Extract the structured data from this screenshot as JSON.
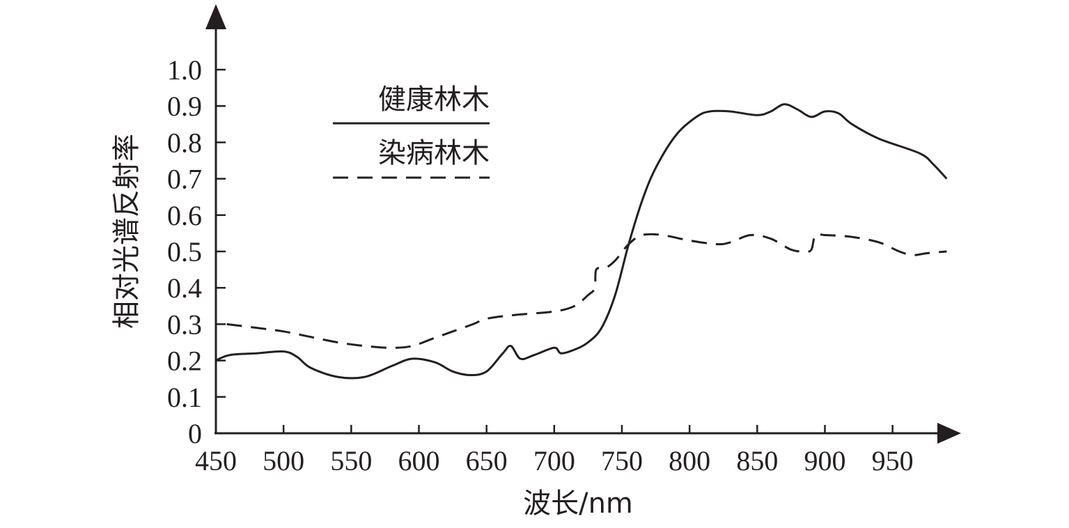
{
  "chart_data": {
    "type": "line",
    "xlabel": "波长/nm",
    "ylabel": "相对光谱反射率",
    "xlim": [
      450,
      990
    ],
    "ylim": [
      0,
      1.0
    ],
    "x_ticks": [
      450,
      500,
      550,
      600,
      650,
      700,
      750,
      800,
      850,
      900,
      950
    ],
    "y_ticks": [
      0,
      0.1,
      0.2,
      0.3,
      0.4,
      0.5,
      0.6,
      0.7,
      0.8,
      0.9,
      1.0
    ],
    "x_tick_labels": [
      "450",
      "500",
      "550",
      "600",
      "650",
      "700",
      "750",
      "800",
      "850",
      "900",
      "950"
    ],
    "y_tick_labels": [
      "0",
      "0.1",
      "0.2",
      "0.3",
      "0.4",
      "0.5",
      "0.6",
      "0.7",
      "0.8",
      "0.9",
      "1.0"
    ],
    "legend_position": "top-left",
    "series": [
      {
        "name": "健康林木",
        "style": "solid",
        "color": "#231f20",
        "x": [
          450,
          460,
          480,
          500,
          510,
          520,
          540,
          560,
          580,
          595,
          612,
          625,
          638,
          650,
          662,
          668,
          675,
          685,
          700,
          705,
          715,
          725,
          735,
          745,
          755,
          765,
          775,
          790,
          805,
          815,
          830,
          850,
          860,
          870,
          880,
          890,
          900,
          910,
          920,
          940,
          970,
          980,
          990
        ],
        "y": [
          0.2,
          0.215,
          0.22,
          0.225,
          0.21,
          0.18,
          0.155,
          0.155,
          0.185,
          0.205,
          0.195,
          0.17,
          0.16,
          0.17,
          0.22,
          0.24,
          0.205,
          0.215,
          0.235,
          0.22,
          0.23,
          0.25,
          0.29,
          0.38,
          0.52,
          0.64,
          0.73,
          0.82,
          0.87,
          0.885,
          0.885,
          0.875,
          0.885,
          0.905,
          0.89,
          0.87,
          0.885,
          0.88,
          0.85,
          0.81,
          0.77,
          0.74,
          0.7
        ]
      },
      {
        "name": "染病林木",
        "style": "dashed",
        "color": "#231f20",
        "x": [
          458,
          480,
          500,
          520,
          540,
          560,
          580,
          595,
          610,
          625,
          640,
          650,
          670,
          700,
          715,
          725,
          730,
          731,
          738,
          745,
          755,
          765,
          780,
          800,
          820,
          830,
          845,
          860,
          875,
          885,
          890,
          893,
          900,
          920,
          940,
          955,
          965,
          975,
          990
        ],
        "y": [
          0.3,
          0.29,
          0.28,
          0.265,
          0.25,
          0.24,
          0.235,
          0.24,
          0.26,
          0.28,
          0.3,
          0.315,
          0.325,
          0.335,
          0.35,
          0.38,
          0.4,
          0.45,
          0.455,
          0.475,
          0.52,
          0.545,
          0.545,
          0.53,
          0.52,
          0.525,
          0.545,
          0.535,
          0.505,
          0.5,
          0.505,
          0.545,
          0.545,
          0.54,
          0.525,
          0.5,
          0.49,
          0.495,
          0.5
        ]
      }
    ]
  }
}
